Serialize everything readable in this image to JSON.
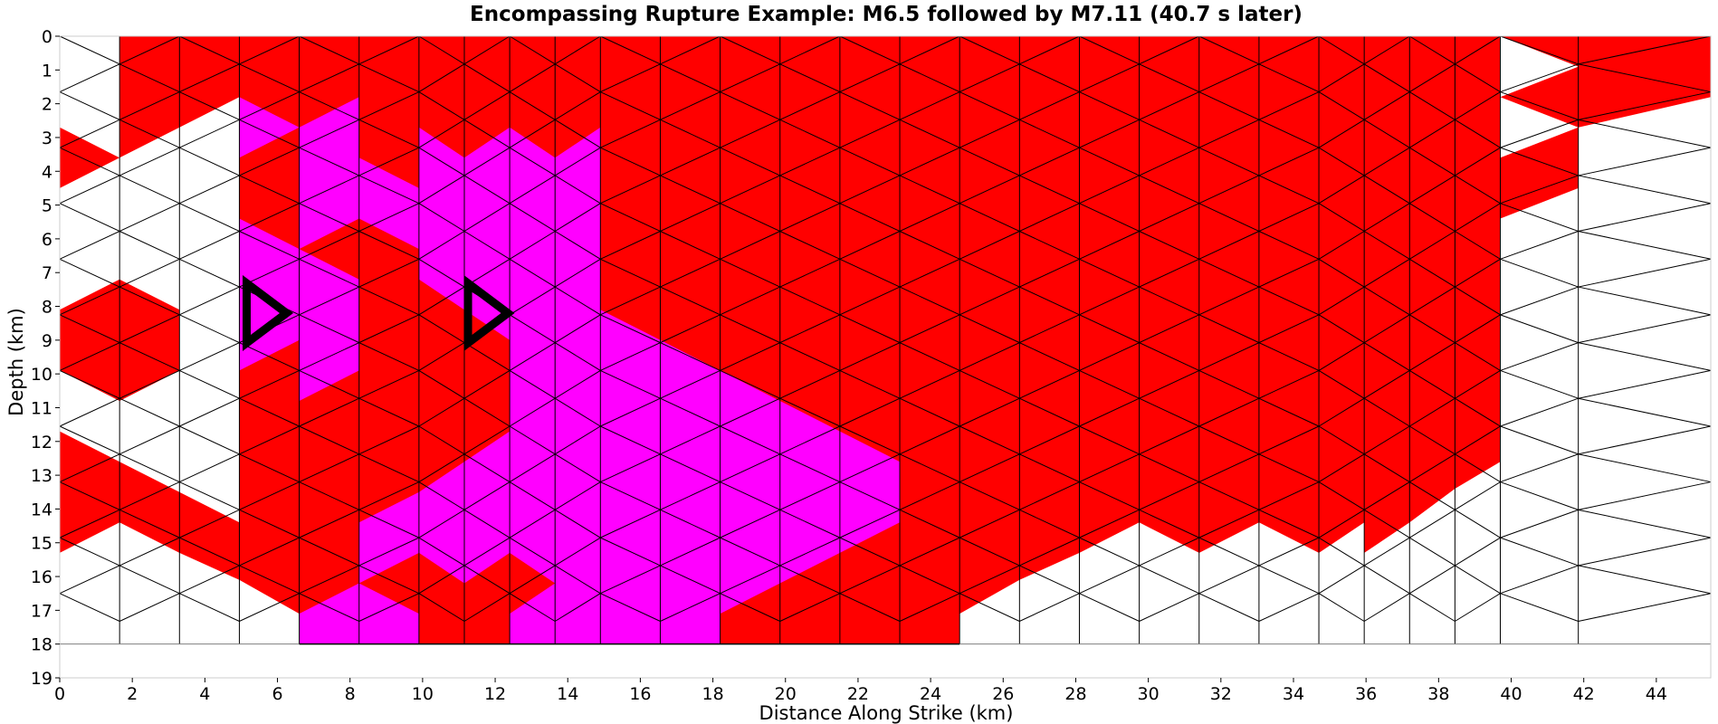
{
  "chart_data": {
    "type": "heatmap",
    "title": "Encompassing Rupture Example: M6.5 followed by M7.11 (40.7 s later)",
    "xlabel": "Distance Along Strike (km)",
    "ylabel": "Depth (km)",
    "xlim": [
      0,
      45.5
    ],
    "ylim": [
      19,
      0
    ],
    "y_inverted": true,
    "xticks": [
      0,
      2,
      4,
      6,
      8,
      10,
      12,
      14,
      16,
      18,
      20,
      22,
      24,
      26,
      28,
      30,
      32,
      34,
      36,
      38,
      40,
      42,
      44
    ],
    "yticks": [
      0,
      1,
      2,
      3,
      4,
      5,
      6,
      7,
      8,
      9,
      10,
      11,
      12,
      13,
      14,
      15,
      16,
      17,
      18,
      19
    ],
    "colors": {
      "first_rupture": "#ff00ff",
      "second_rupture": "#ff0000",
      "mesh_edge": "#808080",
      "rupture_edge": "#000000",
      "hypocenter_marker": "#000000"
    },
    "hypocenters": [
      {
        "x": 5.7,
        "depth": 8.2
      },
      {
        "x": 11.8,
        "depth": 8.2
      }
    ],
    "mesh": {
      "columns": [
        {
          "x0": 0,
          "x1": 1.65,
          "depth_bottom": 18
        },
        {
          "x0": 1.65,
          "x1": 3.3,
          "depth_bottom": 18
        },
        {
          "x0": 3.3,
          "x1": 4.95,
          "depth_bottom": 18
        },
        {
          "x0": 4.95,
          "x1": 6.6,
          "depth_bottom": 18
        },
        {
          "x0": 6.6,
          "x1": 8.25,
          "depth_bottom": 18
        },
        {
          "x0": 8.25,
          "x1": 9.9,
          "depth_bottom": 18
        },
        {
          "x0": 9.9,
          "x1": 11.15,
          "depth_bottom": 18
        },
        {
          "x0": 11.15,
          "x1": 12.4,
          "depth_bottom": 18
        },
        {
          "x0": 12.4,
          "x1": 13.65,
          "depth_bottom": 18
        },
        {
          "x0": 13.65,
          "x1": 14.9,
          "depth_bottom": 18
        },
        {
          "x0": 14.9,
          "x1": 16.55,
          "depth_bottom": 18
        },
        {
          "x0": 16.55,
          "x1": 18.2,
          "depth_bottom": 18
        },
        {
          "x0": 18.2,
          "x1": 19.85,
          "depth_bottom": 18
        },
        {
          "x0": 19.85,
          "x1": 21.5,
          "depth_bottom": 18
        },
        {
          "x0": 21.5,
          "x1": 23.15,
          "depth_bottom": 18
        },
        {
          "x0": 23.15,
          "x1": 24.8,
          "depth_bottom": 18
        },
        {
          "x0": 24.8,
          "x1": 26.45,
          "depth_bottom": 18
        },
        {
          "x0": 26.45,
          "x1": 28.1,
          "depth_bottom": 18
        },
        {
          "x0": 28.1,
          "x1": 29.75,
          "depth_bottom": 18
        },
        {
          "x0": 29.75,
          "x1": 31.4,
          "depth_bottom": 18
        },
        {
          "x0": 31.4,
          "x1": 33.05,
          "depth_bottom": 18
        },
        {
          "x0": 33.05,
          "x1": 34.7,
          "depth_bottom": 18
        },
        {
          "x0": 34.7,
          "x1": 35.95,
          "depth_bottom": 18
        },
        {
          "x0": 35.95,
          "x1": 37.2,
          "depth_bottom": 18
        },
        {
          "x0": 37.2,
          "x1": 38.45,
          "depth_bottom": 18
        },
        {
          "x0": 38.45,
          "x1": 39.7,
          "depth_bottom": 18
        },
        {
          "x0": 39.7,
          "x1": 41.85,
          "depth_bottom": 18
        },
        {
          "x0": 41.85,
          "x1": 45.5,
          "depth_bottom": 18
        }
      ],
      "row_depth_step": 1.65
    },
    "rupture_regions": {
      "second_rupture_red": [
        [
          [
            1.65,
            0
          ],
          [
            39.7,
            0
          ],
          [
            39.7,
            12.6
          ],
          [
            38.45,
            13.4
          ],
          [
            37.2,
            14.4
          ],
          [
            35.95,
            15.3
          ],
          [
            35.95,
            14.4
          ],
          [
            34.7,
            15.3
          ],
          [
            33.05,
            14.4
          ],
          [
            31.4,
            15.3
          ],
          [
            29.75,
            14.4
          ],
          [
            28.1,
            15.3
          ],
          [
            26.45,
            16.1
          ],
          [
            24.8,
            17.1
          ],
          [
            24.8,
            18
          ],
          [
            6.6,
            18
          ],
          [
            6.6,
            17.1
          ],
          [
            4.95,
            16.1
          ],
          [
            3.3,
            15.3
          ],
          [
            1.65,
            14.4
          ],
          [
            0,
            15.3
          ],
          [
            0,
            11.7
          ],
          [
            1.65,
            12.6
          ],
          [
            4.95,
            14.4
          ],
          [
            4.95,
            1.8
          ],
          [
            3.3,
            2.7
          ],
          [
            1.65,
            3.6
          ]
        ],
        [
          [
            0,
            2.7
          ],
          [
            1.65,
            3.6
          ],
          [
            0,
            4.5
          ]
        ],
        [
          [
            0,
            8.1
          ],
          [
            1.65,
            7.2
          ],
          [
            3.3,
            8.1
          ],
          [
            3.3,
            9.9
          ],
          [
            1.65,
            10.8
          ],
          [
            0,
            9.9
          ]
        ],
        [
          [
            39.7,
            0
          ],
          [
            45.5,
            0
          ],
          [
            45.5,
            1.8
          ],
          [
            41.85,
            2.7
          ],
          [
            39.7,
            1.8
          ],
          [
            41.85,
            0.9
          ]
        ],
        [
          [
            39.7,
            3.6
          ],
          [
            41.85,
            2.7
          ],
          [
            41.85,
            4.5
          ],
          [
            39.7,
            5.4
          ]
        ]
      ],
      "first_rupture_magenta": [
        [
          [
            4.95,
            1.8
          ],
          [
            6.6,
            2.7
          ],
          [
            8.25,
            1.8
          ],
          [
            8.25,
            3.6
          ],
          [
            9.9,
            4.5
          ],
          [
            9.9,
            2.7
          ],
          [
            11.15,
            3.6
          ],
          [
            12.4,
            2.7
          ],
          [
            13.65,
            3.6
          ],
          [
            14.9,
            2.7
          ],
          [
            14.9,
            8.1
          ],
          [
            16.55,
            9.0
          ],
          [
            18.2,
            9.9
          ],
          [
            19.85,
            10.8
          ],
          [
            21.5,
            11.7
          ],
          [
            23.15,
            12.6
          ],
          [
            23.15,
            14.4
          ],
          [
            21.5,
            15.3
          ],
          [
            19.85,
            16.2
          ],
          [
            18.2,
            17.1
          ],
          [
            18.2,
            18
          ],
          [
            12.4,
            18
          ],
          [
            12.4,
            17.1
          ],
          [
            13.65,
            16.2
          ],
          [
            12.4,
            15.3
          ],
          [
            11.15,
            16.2
          ],
          [
            9.9,
            15.3
          ],
          [
            8.25,
            16.2
          ],
          [
            8.25,
            14.4
          ],
          [
            9.9,
            13.5
          ],
          [
            12.4,
            11.7
          ],
          [
            12.4,
            9.0
          ],
          [
            11.15,
            8.1
          ],
          [
            9.9,
            7.2
          ],
          [
            9.9,
            6.3
          ],
          [
            8.25,
            5.4
          ],
          [
            6.6,
            6.3
          ],
          [
            6.6,
            4.5
          ],
          [
            6.6,
            2.7
          ],
          [
            4.95,
            3.6
          ]
        ],
        [
          [
            4.95,
            5.4
          ],
          [
            6.6,
            6.3
          ],
          [
            8.25,
            7.2
          ],
          [
            8.25,
            9.9
          ],
          [
            6.6,
            10.8
          ],
          [
            6.6,
            9.0
          ],
          [
            4.95,
            9.9
          ]
        ],
        [
          [
            6.6,
            18
          ],
          [
            6.6,
            17.1
          ],
          [
            8.25,
            16.2
          ],
          [
            9.9,
            17.1
          ],
          [
            9.9,
            18
          ]
        ]
      ]
    }
  }
}
